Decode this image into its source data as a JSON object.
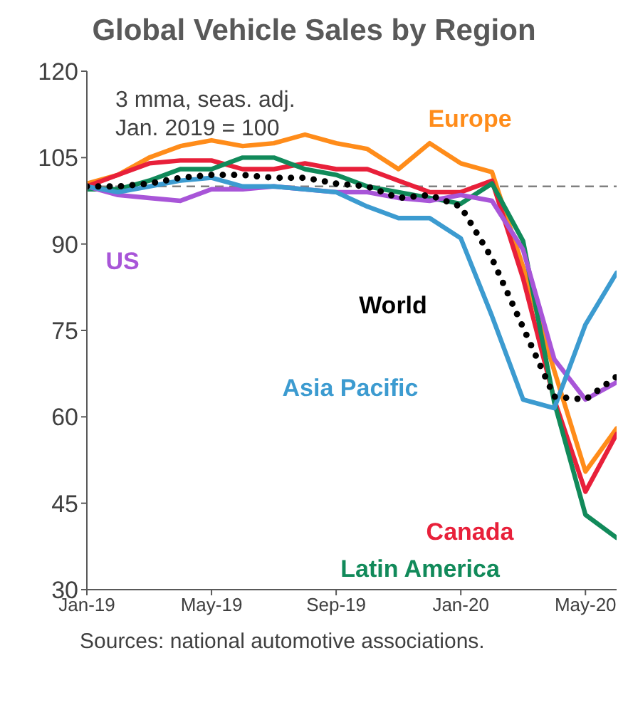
{
  "chart_data": {
    "type": "line",
    "title": "Global Vehicle Sales by Region",
    "x": [
      "2019-01",
      "2019-02",
      "2019-03",
      "2019-04",
      "2019-05",
      "2019-06",
      "2019-07",
      "2019-08",
      "2019-09",
      "2019-10",
      "2019-11",
      "2019-12",
      "2020-01",
      "2020-02",
      "2020-03",
      "2020-04",
      "2020-05",
      "2020-06"
    ],
    "series": [
      {
        "name": "Europe",
        "color": "#ff8c1a",
        "values": [
          100.5,
          102,
          105,
          107,
          108,
          107,
          107.5,
          109,
          107.5,
          106.5,
          103,
          107.5,
          104,
          102.5,
          86,
          68,
          50.5,
          58
        ]
      },
      {
        "name": "Canada",
        "color": "#e8203a",
        "values": [
          100,
          102,
          104,
          104.5,
          104.5,
          103,
          103,
          104,
          103,
          103,
          101,
          99,
          99,
          101,
          84,
          63,
          47,
          57
        ]
      },
      {
        "name": "Latin America",
        "color": "#118a5a",
        "values": [
          99.5,
          99.5,
          101,
          103,
          103,
          105,
          105,
          103,
          102,
          100,
          99,
          98,
          97,
          100.5,
          90.5,
          62.5,
          43,
          39
        ]
      },
      {
        "name": "US",
        "color": "#a855d8",
        "values": [
          100,
          98.5,
          98,
          97.5,
          99.5,
          99.5,
          100,
          99.5,
          99,
          99,
          98,
          97.5,
          98.5,
          97.5,
          89,
          70,
          63,
          66
        ]
      },
      {
        "name": "Asia Pacific",
        "color": "#3c9bd0",
        "values": [
          100,
          99,
          100,
          101,
          101.5,
          100,
          100,
          99.5,
          99,
          96.5,
          94.5,
          94.5,
          91,
          77.5,
          63,
          61.5,
          76,
          85
        ]
      },
      {
        "name": "World",
        "color": "#000000",
        "line_style": "dotted",
        "values": [
          100,
          100,
          100.5,
          101.5,
          102,
          102,
          101.5,
          101.5,
          100.5,
          100,
          98,
          98.5,
          96.5,
          87.5,
          75.5,
          63.5,
          63,
          67
        ]
      }
    ],
    "xlim": [
      "2019-01",
      "2020-06"
    ],
    "xticks": [
      {
        "value": "2019-01",
        "label": "Jan-19"
      },
      {
        "value": "2019-05",
        "label": "May-19"
      },
      {
        "value": "2019-09",
        "label": "Sep-19"
      },
      {
        "value": "2020-01",
        "label": "Jan-20"
      },
      {
        "value": "2020-05",
        "label": "May-20"
      }
    ],
    "ylim": [
      30,
      120
    ],
    "yticks": [
      30,
      45,
      60,
      75,
      90,
      105,
      120
    ],
    "ref_lines": [
      {
        "axis": "y",
        "value": 100,
        "color": "#808080",
        "line_style": "dashed"
      }
    ],
    "annotations": [
      "3 mma, seas. adj.",
      "Jan. 2019 = 100",
      "Sources: national automotive associations."
    ],
    "grid": false,
    "legend": false,
    "marker": "none",
    "line_style": "solid"
  }
}
